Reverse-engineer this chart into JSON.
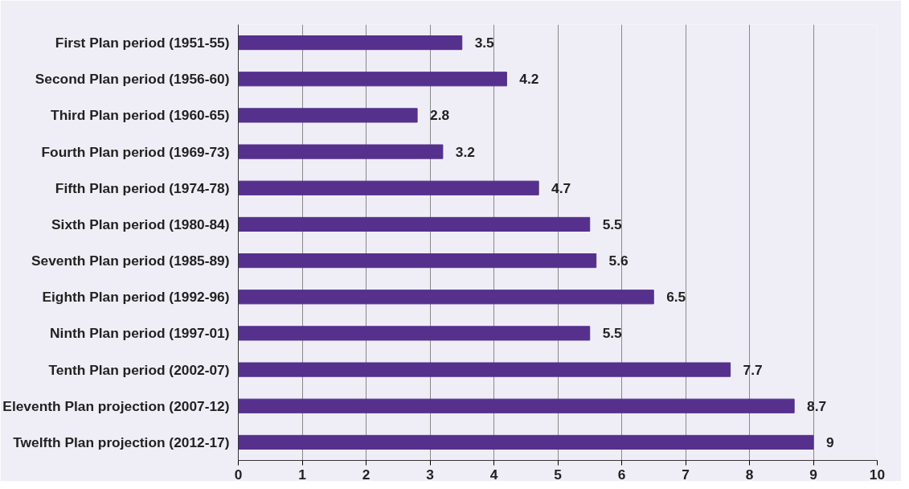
{
  "chart_data": {
    "type": "bar",
    "orientation": "horizontal",
    "categories": [
      "First Plan period (1951-55)",
      "Second Plan period (1956-60)",
      "Third Plan period (1960-65)",
      "Fourth Plan period (1969-73)",
      "Fifth Plan period (1974-78)",
      "Sixth Plan period (1980-84)",
      "Seventh Plan period (1985-89)",
      "Eighth Plan period (1992-96)",
      "Ninth Plan period (1997-01)",
      "Tenth Plan period (2002-07)",
      "Eleventh Plan projection (2007-12)",
      "Twelfth Plan projection (2012-17)"
    ],
    "values": [
      3.5,
      4.2,
      2.8,
      3.2,
      4.7,
      5.5,
      5.6,
      6.5,
      5.5,
      7.7,
      8.7,
      9
    ],
    "color": "#55308d",
    "xlim": [
      0,
      10
    ],
    "xticks": [
      0,
      1,
      2,
      3,
      4,
      5,
      6,
      7,
      8,
      9,
      10
    ],
    "grid": "x",
    "data_labels": true
  }
}
